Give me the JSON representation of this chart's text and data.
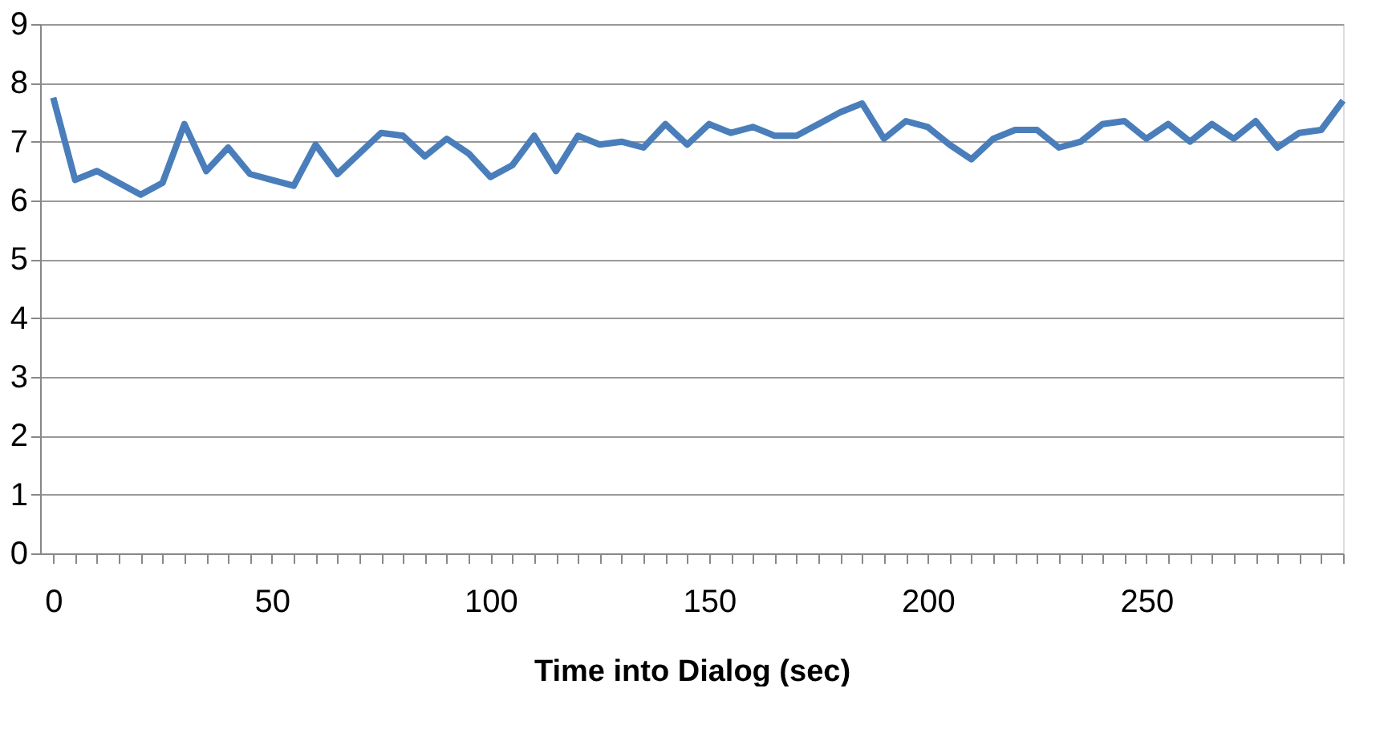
{
  "chart_data": {
    "type": "line",
    "xlabel": "Time into Dialog (sec)",
    "x": [
      0,
      5,
      10,
      15,
      20,
      25,
      30,
      35,
      40,
      45,
      50,
      55,
      60,
      65,
      70,
      75,
      80,
      85,
      90,
      95,
      100,
      105,
      110,
      115,
      120,
      125,
      130,
      135,
      140,
      145,
      150,
      155,
      160,
      165,
      170,
      175,
      180,
      185,
      190,
      195,
      200,
      205,
      210,
      215,
      220,
      225,
      230,
      235,
      240,
      245,
      250,
      255,
      260,
      265,
      270,
      275,
      280,
      285,
      290,
      295
    ],
    "series": [
      {
        "color": "#4a7ebb",
        "values": [
          7.75,
          6.35,
          6.5,
          6.3,
          6.1,
          6.3,
          7.3,
          6.5,
          6.9,
          6.45,
          6.35,
          6.25,
          6.95,
          6.45,
          6.8,
          7.15,
          7.1,
          6.75,
          7.05,
          6.8,
          6.4,
          6.6,
          7.1,
          6.5,
          7.1,
          6.95,
          7.0,
          6.9,
          7.3,
          6.95,
          7.3,
          7.15,
          7.25,
          7.1,
          7.1,
          7.3,
          7.5,
          7.65,
          7.05,
          7.35,
          7.25,
          6.95,
          6.7,
          7.05,
          7.2,
          7.2,
          6.9,
          7.0,
          7.3,
          7.35,
          7.05,
          7.3,
          7.0,
          7.3,
          7.05,
          7.35,
          6.9,
          7.15,
          7.2,
          7.7
        ]
      }
    ],
    "xlim": [
      -3,
      295
    ],
    "xticks": [
      0,
      {
        "value": 5,
        "label": null
      },
      {
        "value": 10,
        "label": null
      },
      {
        "value": 15,
        "label": null
      },
      {
        "value": 20,
        "label": null
      },
      {
        "value": 25,
        "label": null
      },
      {
        "value": 30,
        "label": null
      },
      {
        "value": 35,
        "label": null
      },
      {
        "value": 40,
        "label": null
      },
      {
        "value": 45,
        "label": null
      },
      50,
      {
        "value": 55,
        "label": null
      },
      {
        "value": 60,
        "label": null
      },
      {
        "value": 65,
        "label": null
      },
      {
        "value": 70,
        "label": null
      },
      {
        "value": 75,
        "label": null
      },
      {
        "value": 80,
        "label": null
      },
      {
        "value": 85,
        "label": null
      },
      {
        "value": 90,
        "label": null
      },
      {
        "value": 95,
        "label": null
      },
      100,
      {
        "value": 105,
        "label": null
      },
      {
        "value": 110,
        "label": null
      },
      {
        "value": 115,
        "label": null
      },
      {
        "value": 120,
        "label": null
      },
      {
        "value": 125,
        "label": null
      },
      {
        "value": 130,
        "label": null
      },
      {
        "value": 135,
        "label": null
      },
      {
        "value": 140,
        "label": null
      },
      {
        "value": 145,
        "label": null
      },
      150,
      {
        "value": 155,
        "label": null
      },
      {
        "value": 160,
        "label": null
      },
      {
        "value": 165,
        "label": null
      },
      {
        "value": 170,
        "label": null
      },
      {
        "value": 175,
        "label": null
      },
      {
        "value": 180,
        "label": null
      },
      {
        "value": 185,
        "label": null
      },
      {
        "value": 190,
        "label": null
      },
      {
        "value": 195,
        "label": null
      },
      200,
      {
        "value": 205,
        "label": null
      },
      {
        "value": 210,
        "label": null
      },
      {
        "value": 215,
        "label": null
      },
      {
        "value": 220,
        "label": null
      },
      {
        "value": 225,
        "label": null
      },
      {
        "value": 230,
        "label": null
      },
      {
        "value": 235,
        "label": null
      },
      {
        "value": 240,
        "label": null
      },
      {
        "value": 245,
        "label": null
      },
      250,
      {
        "value": 255,
        "label": null
      },
      {
        "value": 260,
        "label": null
      },
      {
        "value": 265,
        "label": null
      },
      {
        "value": 270,
        "label": null
      },
      {
        "value": 275,
        "label": null
      },
      {
        "value": 280,
        "label": null
      },
      {
        "value": 285,
        "label": null
      },
      {
        "value": 290,
        "label": null
      },
      {
        "value": 295,
        "label": null
      }
    ],
    "ylim": [
      0,
      9
    ],
    "yticks": [
      0,
      1,
      2,
      3,
      4,
      5,
      6,
      7,
      8,
      9
    ],
    "grid": "y",
    "legend": false,
    "marker": "none",
    "line_style": "solid"
  }
}
